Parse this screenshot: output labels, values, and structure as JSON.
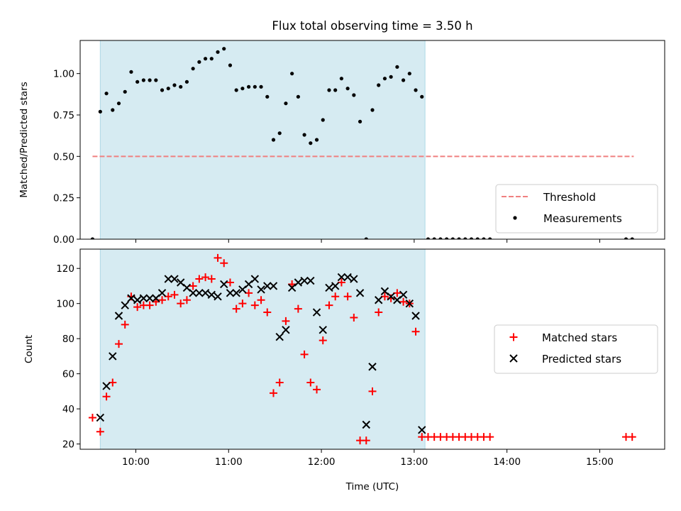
{
  "figure": {
    "title": "Flux total observing time = 3.50 h"
  },
  "colors": {
    "shade": "#add8e6",
    "threshold": "#f08080",
    "matched": "#ff0000",
    "predicted": "#000000"
  },
  "chart_data": [
    {
      "type": "scatter",
      "ylabel": "Matched/Predicted stars",
      "xlabel": "",
      "xlim": [
        "09:24",
        "15:42"
      ],
      "ylim": [
        0,
        1.2
      ],
      "yticks": [
        0.0,
        0.25,
        0.5,
        0.75,
        1.0
      ],
      "ytick_labels": [
        "0.00",
        "0.25",
        "0.50",
        "0.75",
        "1.00"
      ],
      "x_tick_labels_visible": false,
      "shaded_span": [
        "09:37",
        "13:07"
      ],
      "threshold": {
        "name": "Threshold",
        "y": 0.5,
        "x_start": "09:32",
        "x_end": "15:22",
        "style": "dashed"
      },
      "legend": {
        "position": "lower-right",
        "entries": [
          "Threshold",
          "Measurements"
        ]
      },
      "series": [
        {
          "name": "Measurements",
          "marker": "dot",
          "points": [
            [
              "09:32",
              0.0
            ],
            [
              "09:37",
              0.77
            ],
            [
              "09:41",
              0.88
            ],
            [
              "09:45",
              0.78
            ],
            [
              "09:49",
              0.82
            ],
            [
              "09:53",
              0.89
            ],
            [
              "09:57",
              1.01
            ],
            [
              "10:01",
              0.95
            ],
            [
              "10:05",
              0.96
            ],
            [
              "10:09",
              0.96
            ],
            [
              "10:13",
              0.96
            ],
            [
              "10:17",
              0.9
            ],
            [
              "10:21",
              0.91
            ],
            [
              "10:25",
              0.93
            ],
            [
              "10:29",
              0.92
            ],
            [
              "10:33",
              0.95
            ],
            [
              "10:37",
              1.03
            ],
            [
              "10:41",
              1.07
            ],
            [
              "10:45",
              1.09
            ],
            [
              "10:49",
              1.09
            ],
            [
              "10:53",
              1.13
            ],
            [
              "10:57",
              1.15
            ],
            [
              "11:01",
              1.05
            ],
            [
              "11:05",
              0.9
            ],
            [
              "11:09",
              0.91
            ],
            [
              "11:13",
              0.92
            ],
            [
              "11:17",
              0.92
            ],
            [
              "11:21",
              0.92
            ],
            [
              "11:25",
              0.86
            ],
            [
              "11:29",
              0.6
            ],
            [
              "11:33",
              0.64
            ],
            [
              "11:37",
              0.82
            ],
            [
              "11:41",
              1.0
            ],
            [
              "11:45",
              0.86
            ],
            [
              "11:49",
              0.63
            ],
            [
              "11:53",
              0.58
            ],
            [
              "11:57",
              0.6
            ],
            [
              "12:01",
              0.72
            ],
            [
              "12:05",
              0.9
            ],
            [
              "12:09",
              0.9
            ],
            [
              "12:13",
              0.97
            ],
            [
              "12:17",
              0.91
            ],
            [
              "12:21",
              0.87
            ],
            [
              "12:25",
              0.71
            ],
            [
              "12:29",
              0.0
            ],
            [
              "12:33",
              0.78
            ],
            [
              "12:37",
              0.93
            ],
            [
              "12:41",
              0.97
            ],
            [
              "12:45",
              0.98
            ],
            [
              "12:49",
              1.04
            ],
            [
              "12:53",
              0.96
            ],
            [
              "12:57",
              1.0
            ],
            [
              "13:01",
              0.9
            ],
            [
              "13:05",
              0.86
            ],
            [
              "13:09",
              0.0
            ],
            [
              "13:13",
              0.0
            ],
            [
              "13:17",
              0.0
            ],
            [
              "13:21",
              0.0
            ],
            [
              "13:25",
              0.0
            ],
            [
              "13:29",
              0.0
            ],
            [
              "13:33",
              0.0
            ],
            [
              "13:37",
              0.0
            ],
            [
              "13:41",
              0.0
            ],
            [
              "13:45",
              0.0
            ],
            [
              "13:49",
              0.0
            ],
            [
              "15:17",
              0.0
            ],
            [
              "15:21",
              0.0
            ]
          ]
        }
      ]
    },
    {
      "type": "scatter",
      "ylabel": "Count",
      "xlabel": "Time (UTC)",
      "xlim": [
        "09:24",
        "15:42"
      ],
      "ylim": [
        17,
        131
      ],
      "yticks": [
        20,
        40,
        60,
        80,
        100,
        120
      ],
      "ytick_labels": [
        "20",
        "40",
        "60",
        "80",
        "100",
        "120"
      ],
      "x_ticks": [
        "10:00",
        "11:00",
        "12:00",
        "13:00",
        "14:00",
        "15:00"
      ],
      "shaded_span": [
        "09:37",
        "13:07"
      ],
      "legend": {
        "position": "center-right",
        "entries": [
          "Matched stars",
          "Predicted stars"
        ]
      },
      "series": [
        {
          "name": "Matched stars",
          "marker": "plus",
          "points": [
            [
              "09:32",
              35
            ],
            [
              "09:37",
              27
            ],
            [
              "09:41",
              47
            ],
            [
              "09:45",
              55
            ],
            [
              "09:49",
              77
            ],
            [
              "09:53",
              88
            ],
            [
              "09:57",
              104
            ],
            [
              "10:01",
              98
            ],
            [
              "10:05",
              99
            ],
            [
              "10:09",
              99
            ],
            [
              "10:13",
              101
            ],
            [
              "10:17",
              102
            ],
            [
              "10:21",
              104
            ],
            [
              "10:25",
              105
            ],
            [
              "10:29",
              100
            ],
            [
              "10:33",
              102
            ],
            [
              "10:37",
              110
            ],
            [
              "10:41",
              114
            ],
            [
              "10:45",
              115
            ],
            [
              "10:49",
              114
            ],
            [
              "10:53",
              126
            ],
            [
              "10:57",
              123
            ],
            [
              "11:01",
              112
            ],
            [
              "11:05",
              97
            ],
            [
              "11:09",
              100
            ],
            [
              "11:13",
              106
            ],
            [
              "11:17",
              99
            ],
            [
              "11:21",
              102
            ],
            [
              "11:25",
              95
            ],
            [
              "11:29",
              49
            ],
            [
              "11:33",
              55
            ],
            [
              "11:37",
              90
            ],
            [
              "11:41",
              111
            ],
            [
              "11:45",
              97
            ],
            [
              "11:49",
              71
            ],
            [
              "11:53",
              55
            ],
            [
              "11:57",
              51
            ],
            [
              "12:01",
              79
            ],
            [
              "12:05",
              99
            ],
            [
              "12:09",
              104
            ],
            [
              "12:13",
              112
            ],
            [
              "12:17",
              104
            ],
            [
              "12:21",
              92
            ],
            [
              "12:25",
              22
            ],
            [
              "12:29",
              22
            ],
            [
              "12:33",
              50
            ],
            [
              "12:37",
              95
            ],
            [
              "12:41",
              104
            ],
            [
              "12:45",
              103
            ],
            [
              "12:49",
              106
            ],
            [
              "12:53",
              101
            ],
            [
              "12:57",
              100
            ],
            [
              "13:01",
              84
            ],
            [
              "13:05",
              24
            ],
            [
              "13:09",
              24
            ],
            [
              "13:13",
              24
            ],
            [
              "13:17",
              24
            ],
            [
              "13:21",
              24
            ],
            [
              "13:25",
              24
            ],
            [
              "13:29",
              24
            ],
            [
              "13:33",
              24
            ],
            [
              "13:37",
              24
            ],
            [
              "13:41",
              24
            ],
            [
              "13:45",
              24
            ],
            [
              "13:49",
              24
            ],
            [
              "15:17",
              24
            ],
            [
              "15:21",
              24
            ]
          ]
        },
        {
          "name": "Predicted stars",
          "marker": "x",
          "points": [
            [
              "09:37",
              35
            ],
            [
              "09:41",
              53
            ],
            [
              "09:45",
              70
            ],
            [
              "09:49",
              93
            ],
            [
              "09:53",
              99
            ],
            [
              "09:57",
              103
            ],
            [
              "10:01",
              102
            ],
            [
              "10:05",
              103
            ],
            [
              "10:09",
              103
            ],
            [
              "10:13",
              103
            ],
            [
              "10:17",
              106
            ],
            [
              "10:21",
              114
            ],
            [
              "10:25",
              114
            ],
            [
              "10:29",
              112
            ],
            [
              "10:33",
              109
            ],
            [
              "10:37",
              106
            ],
            [
              "10:41",
              106
            ],
            [
              "10:45",
              106
            ],
            [
              "10:49",
              105
            ],
            [
              "10:53",
              104
            ],
            [
              "10:57",
              111
            ],
            [
              "11:01",
              106
            ],
            [
              "11:05",
              106
            ],
            [
              "11:09",
              108
            ],
            [
              "11:13",
              111
            ],
            [
              "11:17",
              114
            ],
            [
              "11:21",
              108
            ],
            [
              "11:25",
              110
            ],
            [
              "11:29",
              110
            ],
            [
              "11:33",
              81
            ],
            [
              "11:37",
              85
            ],
            [
              "11:41",
              109
            ],
            [
              "11:45",
              112
            ],
            [
              "11:49",
              113
            ],
            [
              "11:53",
              113
            ],
            [
              "11:57",
              95
            ],
            [
              "12:01",
              85
            ],
            [
              "12:05",
              109
            ],
            [
              "12:09",
              110
            ],
            [
              "12:13",
              115
            ],
            [
              "12:17",
              115
            ],
            [
              "12:21",
              114
            ],
            [
              "12:25",
              106
            ],
            [
              "12:29",
              31
            ],
            [
              "12:33",
              64
            ],
            [
              "12:37",
              102
            ],
            [
              "12:41",
              107
            ],
            [
              "12:45",
              104
            ],
            [
              "12:49",
              102
            ],
            [
              "12:53",
              105
            ],
            [
              "12:57",
              100
            ],
            [
              "13:01",
              93
            ],
            [
              "13:05",
              28
            ]
          ]
        }
      ]
    }
  ]
}
